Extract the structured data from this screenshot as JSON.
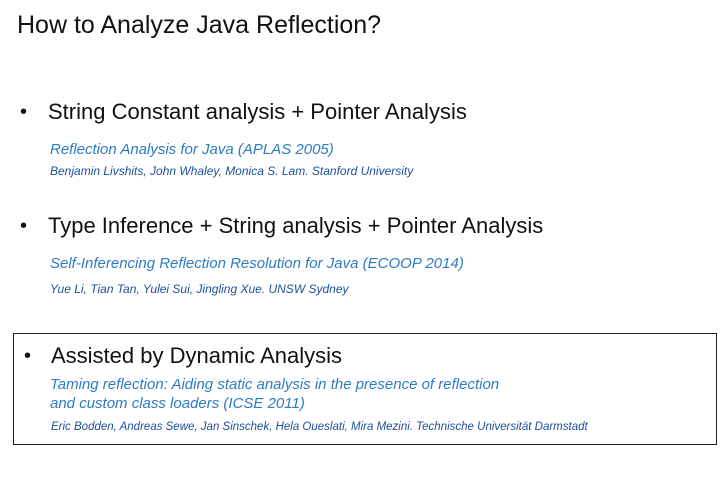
{
  "slide": {
    "title": "How to Analyze Java Reflection?",
    "bullet_symbol": "•",
    "items": [
      {
        "heading": "String Constant analysis + Pointer Analysis",
        "paper": [
          "Reflection Analysis for Java (APLAS 2005)"
        ],
        "authors": "Benjamin Livshits, John Whaley, Monica S. Lam. Stanford University"
      },
      {
        "heading": "Type Inference + String analysis + Pointer Analysis",
        "paper": [
          "Self-Inferencing Reflection Resolution for Java (ECOOP 2014)"
        ],
        "authors": "Yue Li, Tian Tan, Yulei Sui, Jingling Xue. UNSW Sydney"
      },
      {
        "heading": "Assisted by Dynamic Analysis",
        "paper": [
          "Taming reflection: Aiding static analysis in the presence of reflection",
          "and custom class loaders (ICSE 2011)"
        ],
        "authors": "Eric Bodden, Andreas Sewe, Jan Sinschek, Hela Oueslati, Mira Mezini. Technische Universität Darmstadt"
      }
    ]
  },
  "colors": {
    "text": "#111111",
    "paper_link": "#2e7bc4",
    "authors": "#1f4f9a",
    "highlight_box_border": "#222222"
  }
}
